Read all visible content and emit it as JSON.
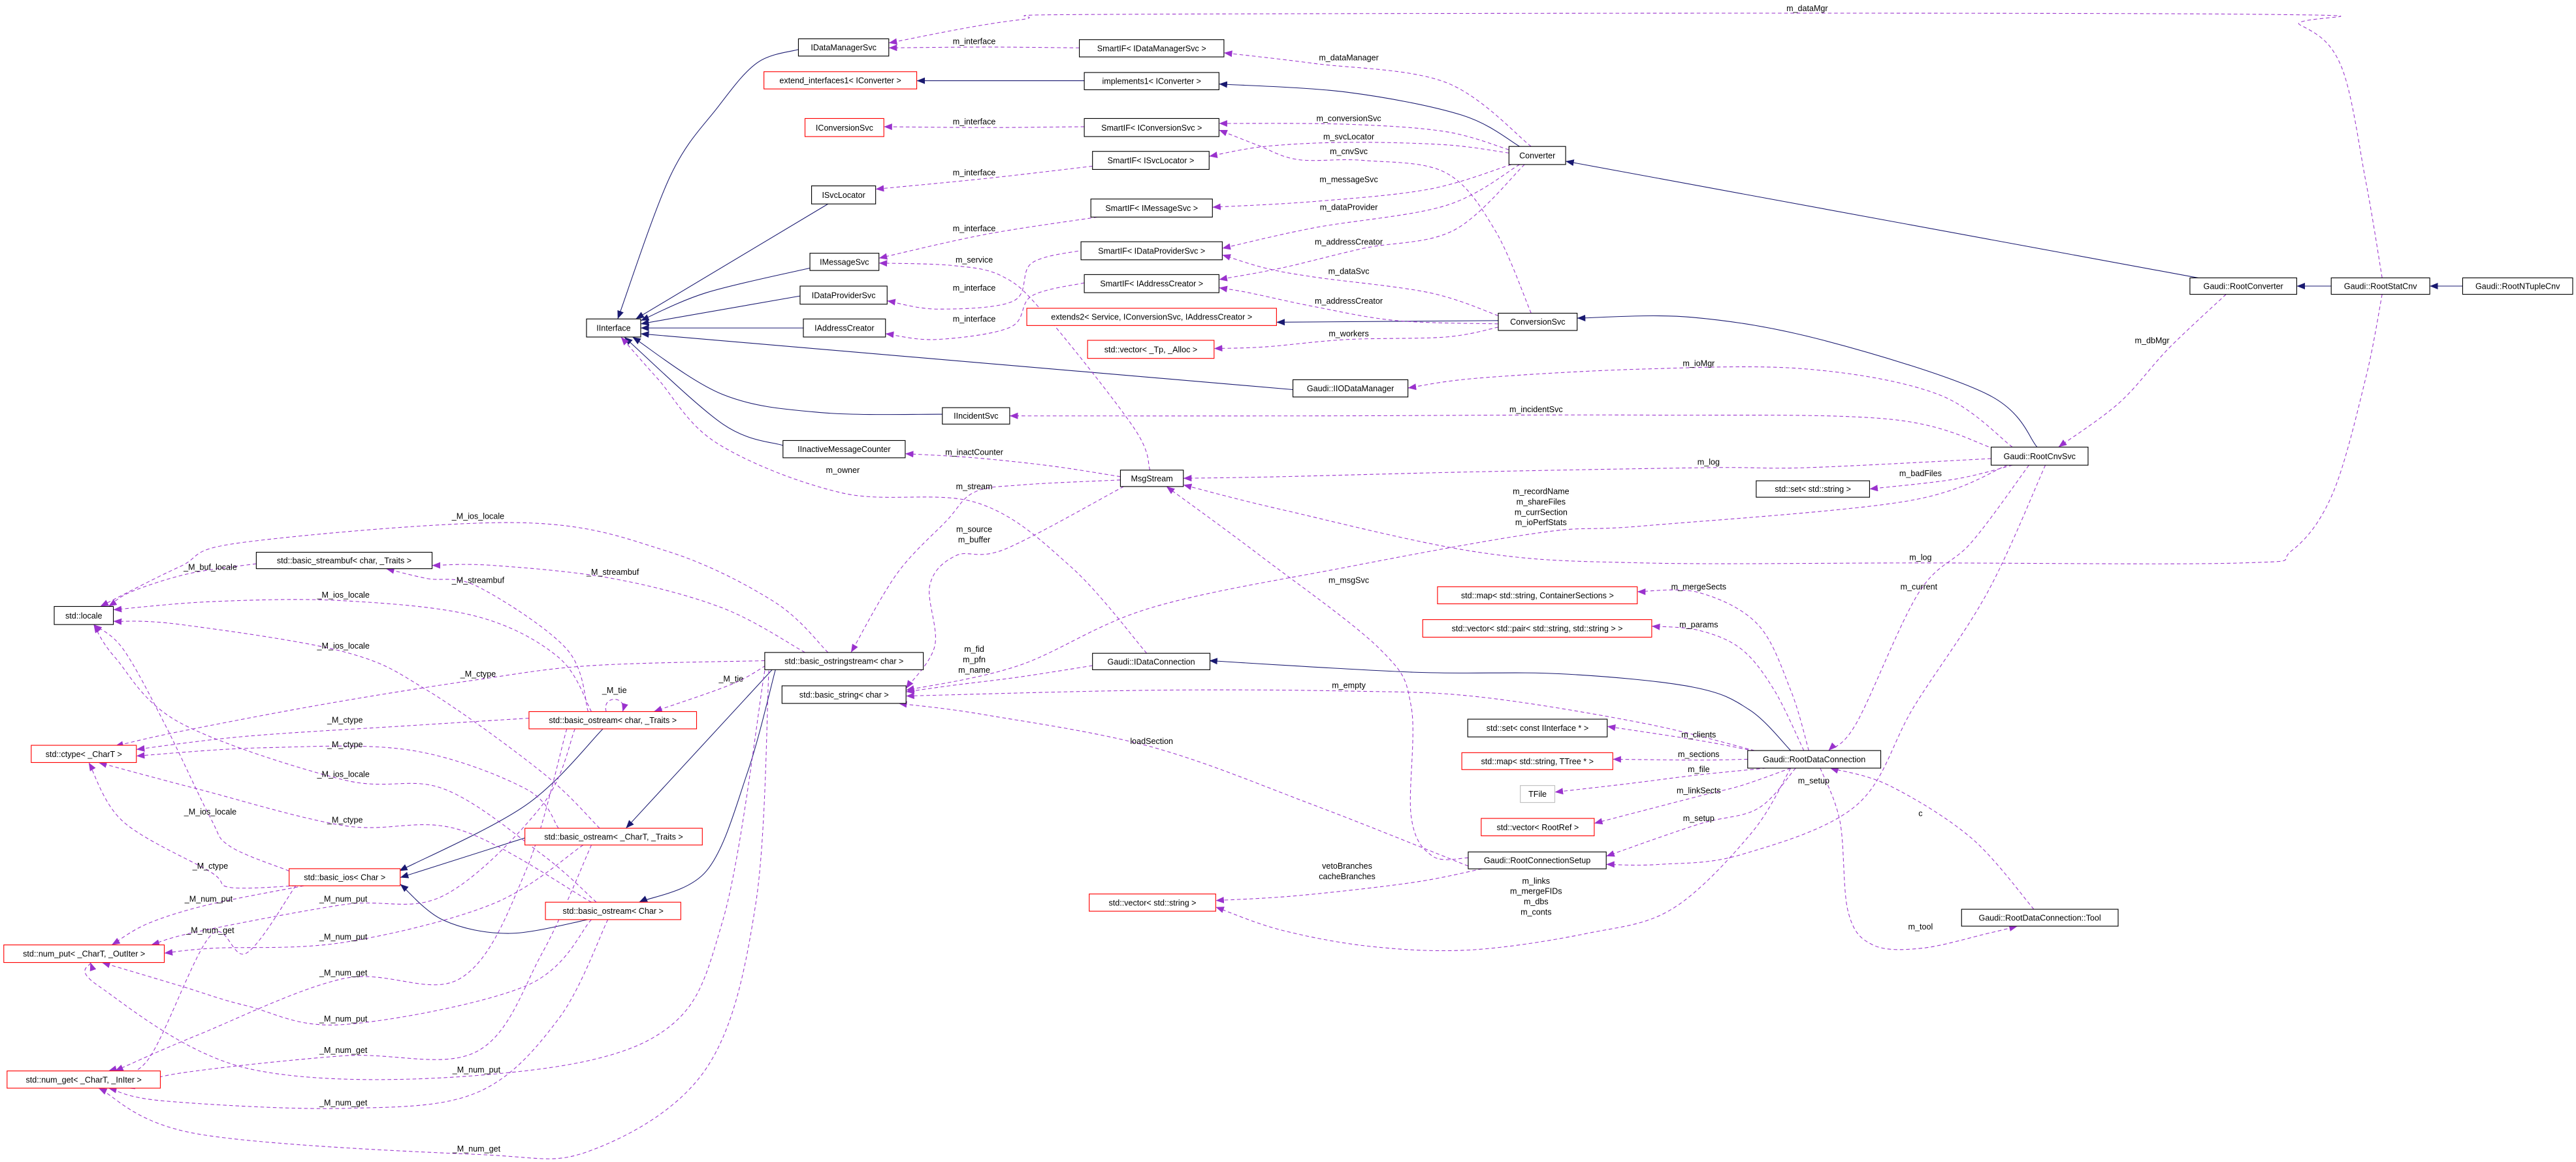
{
  "colors": {
    "inheritance_edge": "#191970",
    "usage_edge": "#9a32cd",
    "documented_border": "#000000",
    "undocumented_border": "#ff0000",
    "external_border": "#bfbfbf",
    "focus_fill": "#bfbfbf"
  },
  "nodes": [
    {
      "label": "IInterface",
      "border": "black"
    },
    {
      "label": "IDataManagerSvc",
      "border": "black"
    },
    {
      "label": "SmartIF< IDataManagerSvc >",
      "border": "black"
    },
    {
      "label": "extend_interfaces1< IConverter >",
      "border": "red"
    },
    {
      "label": "implements1< IConverter >",
      "border": "black"
    },
    {
      "label": "IConversionSvc",
      "border": "red"
    },
    {
      "label": "SmartIF< IConversionSvc >",
      "border": "black"
    },
    {
      "label": "SmartIF< ISvcLocator >",
      "border": "black"
    },
    {
      "label": "ISvcLocator",
      "border": "black"
    },
    {
      "label": "SmartIF< IMessageSvc >",
      "border": "black"
    },
    {
      "label": "IMessageSvc",
      "border": "black"
    },
    {
      "label": "SmartIF< IDataProviderSvc >",
      "border": "black"
    },
    {
      "label": "IDataProviderSvc",
      "border": "black"
    },
    {
      "label": "SmartIF< IAddressCreator >",
      "border": "black"
    },
    {
      "label": "IAddressCreator",
      "border": "black"
    },
    {
      "label": "extends2< Service, IConversionSvc, IAddressCreator >",
      "border": "red"
    },
    {
      "label": "std::vector< _Tp, _Alloc >",
      "border": "red"
    },
    {
      "label": "Converter",
      "border": "black"
    },
    {
      "label": "ConversionSvc",
      "border": "black"
    },
    {
      "label": "Gaudi::IIODataManager",
      "border": "black"
    },
    {
      "label": "IIncidentSvc",
      "border": "black"
    },
    {
      "label": "IInactiveMessageCounter",
      "border": "black"
    },
    {
      "label": "MsgStream",
      "border": "black"
    },
    {
      "label": "Gaudi::RootConverter",
      "border": "black"
    },
    {
      "label": "Gaudi::RootStatCnv",
      "border": "black"
    },
    {
      "label": "Gaudi::RootNTupleCnv",
      "border": "black",
      "focus": true
    },
    {
      "label": "Gaudi::RootCnvSvc",
      "border": "black"
    },
    {
      "label": "std::set< std::string >",
      "border": "black"
    },
    {
      "label": "std::basic_streambuf< char, _Traits >",
      "border": "black"
    },
    {
      "label": "std::locale",
      "border": "black"
    },
    {
      "label": "std::basic_ostringstream< char >",
      "border": "black"
    },
    {
      "label": "std::basic_string< char >",
      "border": "black"
    },
    {
      "label": "Gaudi::IDataConnection",
      "border": "black"
    },
    {
      "label": "std::ctype< _CharT >",
      "border": "red"
    },
    {
      "label": "std::basic_ostream< char, _Traits >",
      "border": "red"
    },
    {
      "label": "std::basic_ostream< _CharT, _Traits >",
      "border": "red"
    },
    {
      "label": "std::basic_ios< Char >",
      "border": "red"
    },
    {
      "label": "std::basic_ostream< Char >",
      "border": "red"
    },
    {
      "label": "std::num_put< _CharT, _OutIter >",
      "border": "red"
    },
    {
      "label": "std::num_get< _CharT, _InIter >",
      "border": "red"
    },
    {
      "label": "std::map< std::string, ContainerSections >",
      "border": "red"
    },
    {
      "label": "std::vector< std::pair< std::string, std::string > >",
      "border": "red"
    },
    {
      "label": "std::set< const IInterface * >",
      "border": "black"
    },
    {
      "label": "std::map< std::string, TTree * >",
      "border": "red"
    },
    {
      "label": "TFile",
      "border": "gray"
    },
    {
      "label": "std::vector< RootRef >",
      "border": "red"
    },
    {
      "label": "Gaudi::RootConnectionSetup",
      "border": "black"
    },
    {
      "label": "std::vector< std::string >",
      "border": "red"
    },
    {
      "label": "Gaudi::RootDataConnection",
      "border": "black"
    },
    {
      "label": "Gaudi::RootDataConnection::Tool",
      "border": "black"
    }
  ],
  "edges": [
    {
      "from": 1,
      "to": 0,
      "type": "inheritance"
    },
    {
      "from": 8,
      "to": 0,
      "type": "inheritance"
    },
    {
      "from": 10,
      "to": 0,
      "type": "inheritance"
    },
    {
      "from": 12,
      "to": 0,
      "type": "inheritance"
    },
    {
      "from": 14,
      "to": 0,
      "type": "inheritance"
    },
    {
      "from": 19,
      "to": 0,
      "type": "inheritance"
    },
    {
      "from": 20,
      "to": 0,
      "type": "inheritance"
    },
    {
      "from": 21,
      "to": 0,
      "type": "inheritance"
    },
    {
      "from": 4,
      "to": 3,
      "type": "inheritance"
    },
    {
      "from": 17,
      "to": 4,
      "type": "inheritance"
    },
    {
      "from": 23,
      "to": 17,
      "type": "inheritance"
    },
    {
      "from": 24,
      "to": 23,
      "type": "inheritance"
    },
    {
      "from": 25,
      "to": 24,
      "type": "inheritance"
    },
    {
      "from": 18,
      "to": 15,
      "type": "inheritance"
    },
    {
      "from": 26,
      "to": 18,
      "type": "inheritance"
    },
    {
      "from": 48,
      "to": 32,
      "type": "inheritance"
    },
    {
      "from": 30,
      "to": 35,
      "type": "inheritance"
    },
    {
      "from": 30,
      "to": 37,
      "type": "inheritance"
    },
    {
      "from": 34,
      "to": 36,
      "type": "inheritance"
    },
    {
      "from": 35,
      "to": 36,
      "type": "inheritance"
    },
    {
      "from": 37,
      "to": 36,
      "type": "inheritance"
    },
    {
      "from": 2,
      "to": 1,
      "type": "usage",
      "label": [
        "m_interface"
      ]
    },
    {
      "from": 24,
      "to": 1,
      "type": "usage",
      "label": [
        "m_dataMgr"
      ]
    },
    {
      "from": 17,
      "to": 2,
      "type": "usage",
      "label": [
        "m_dataManager"
      ]
    },
    {
      "from": 6,
      "to": 5,
      "type": "usage",
      "label": [
        "m_interface"
      ]
    },
    {
      "from": 17,
      "to": 6,
      "type": "usage",
      "label": [
        "m_conversionSvc"
      ]
    },
    {
      "from": 18,
      "to": 6,
      "type": "usage",
      "label": [
        "m_cnvSvc"
      ]
    },
    {
      "from": 17,
      "to": 7,
      "type": "usage",
      "label": [
        "m_svcLocator"
      ]
    },
    {
      "from": 7,
      "to": 8,
      "type": "usage",
      "label": [
        "m_interface"
      ]
    },
    {
      "from": 17,
      "to": 9,
      "type": "usage",
      "label": [
        "m_messageSvc"
      ]
    },
    {
      "from": 9,
      "to": 10,
      "type": "usage",
      "label": [
        "m_interface"
      ]
    },
    {
      "from": 22,
      "to": 10,
      "type": "usage",
      "label": [
        "m_service"
      ]
    },
    {
      "from": 17,
      "to": 11,
      "type": "usage",
      "label": [
        "m_dataProvider"
      ]
    },
    {
      "from": 18,
      "to": 11,
      "type": "usage",
      "label": [
        "m_dataSvc"
      ]
    },
    {
      "from": 11,
      "to": 12,
      "type": "usage",
      "label": [
        "m_interface"
      ]
    },
    {
      "from": 17,
      "to": 13,
      "type": "usage",
      "label": [
        "m_addressCreator"
      ]
    },
    {
      "from": 18,
      "to": 13,
      "type": "usage",
      "label": [
        "m_addressCreator"
      ]
    },
    {
      "from": 13,
      "to": 14,
      "type": "usage",
      "label": [
        "m_interface"
      ]
    },
    {
      "from": 18,
      "to": 16,
      "type": "usage",
      "label": [
        "m_workers"
      ]
    },
    {
      "from": 26,
      "to": 19,
      "type": "usage",
      "label": [
        "m_ioMgr"
      ]
    },
    {
      "from": 26,
      "to": 20,
      "type": "usage",
      "label": [
        "m_incidentSvc"
      ]
    },
    {
      "from": 26,
      "to": 22,
      "type": "usage",
      "label": [
        "m_log"
      ]
    },
    {
      "from": 23,
      "to": 26,
      "type": "usage",
      "label": [
        "m_dbMgr"
      ]
    },
    {
      "from": 26,
      "to": 27,
      "type": "usage",
      "label": [
        "m_badFiles"
      ]
    },
    {
      "from": 26,
      "to": 31,
      "type": "usage",
      "label": [
        "m_recordName",
        "m_shareFiles",
        "m_currSection",
        "m_ioPerfStats"
      ]
    },
    {
      "from": 24,
      "to": 22,
      "type": "usage",
      "label": [
        "m_log"
      ]
    },
    {
      "from": 26,
      "to": 48,
      "type": "usage",
      "label": [
        "m_current"
      ]
    },
    {
      "from": 22,
      "to": 21,
      "type": "usage",
      "label": [
        "m_inactCounter"
      ]
    },
    {
      "from": 32,
      "to": 0,
      "type": "usage",
      "label": [
        "m_owner"
      ]
    },
    {
      "from": 22,
      "to": 30,
      "type": "usage",
      "label": [
        "m_stream"
      ]
    },
    {
      "from": 22,
      "to": 31,
      "type": "usage",
      "label": [
        "m_source",
        "m_buffer"
      ]
    },
    {
      "from": 32,
      "to": 31,
      "type": "usage",
      "label": [
        "m_fid",
        "m_pfn",
        "m_name"
      ]
    },
    {
      "from": 46,
      "to": 22,
      "type": "usage",
      "label": [
        "m_msgSvc"
      ]
    },
    {
      "from": 48,
      "to": 31,
      "type": "usage",
      "label": [
        "m_empty"
      ]
    },
    {
      "from": 46,
      "to": 31,
      "type": "usage",
      "label": [
        "loadSection"
      ]
    },
    {
      "from": 48,
      "to": 40,
      "type": "usage",
      "label": [
        "m_mergeSects"
      ]
    },
    {
      "from": 48,
      "to": 41,
      "type": "usage",
      "label": [
        "m_params"
      ]
    },
    {
      "from": 48,
      "to": 42,
      "type": "usage",
      "label": [
        "m_clients"
      ]
    },
    {
      "from": 48,
      "to": 43,
      "type": "usage",
      "label": [
        "m_sections"
      ]
    },
    {
      "from": 48,
      "to": 44,
      "type": "usage",
      "label": [
        "m_file"
      ]
    },
    {
      "from": 48,
      "to": 45,
      "type": "usage",
      "label": [
        "m_linkSects"
      ]
    },
    {
      "from": 48,
      "to": 46,
      "type": "usage",
      "label": [
        "m_setup"
      ]
    },
    {
      "from": 26,
      "to": 46,
      "type": "usage",
      "label": [
        "m_setup"
      ]
    },
    {
      "from": 46,
      "to": 47,
      "type": "usage",
      "label": [
        "vetoBranches",
        "cacheBranches"
      ]
    },
    {
      "from": 48,
      "to": 47,
      "type": "usage",
      "label": [
        "m_links",
        "m_mergeFIDs",
        "m_dbs",
        "m_conts"
      ]
    },
    {
      "from": 49,
      "to": 48,
      "type": "usage",
      "label": [
        "c"
      ]
    },
    {
      "from": 48,
      "to": 49,
      "type": "usage",
      "label": [
        "m_tool"
      ]
    },
    {
      "from": 30,
      "to": 29,
      "type": "usage",
      "label": [
        "_M_ios_locale"
      ]
    },
    {
      "from": 28,
      "to": 29,
      "type": "usage",
      "label": [
        "_M_buf_locale"
      ]
    },
    {
      "from": 30,
      "to": 28,
      "type": "usage",
      "label": [
        "_M_streambuf"
      ]
    },
    {
      "from": 34,
      "to": 28,
      "type": "usage",
      "label": [
        "_M_streambuf"
      ]
    },
    {
      "from": 34,
      "to": 29,
      "type": "usage",
      "label": [
        "_M_ios_locale"
      ]
    },
    {
      "from": 35,
      "to": 29,
      "type": "usage",
      "label": [
        "_M_ios_locale"
      ]
    },
    {
      "from": 30,
      "to": 33,
      "type": "usage",
      "label": [
        "_M_ctype"
      ]
    },
    {
      "from": 34,
      "to": 34,
      "type": "usage",
      "label": [
        "_M_tie"
      ]
    },
    {
      "from": 30,
      "to": 34,
      "type": "usage",
      "label": [
        "_M_tie"
      ]
    },
    {
      "from": 34,
      "to": 33,
      "type": "usage",
      "label": [
        "_M_ctype"
      ]
    },
    {
      "from": 35,
      "to": 33,
      "type": "usage",
      "label": [
        "_M_ctype"
      ]
    },
    {
      "from": 37,
      "to": 29,
      "type": "usage",
      "label": [
        "_M_ios_locale"
      ]
    },
    {
      "from": 36,
      "to": 29,
      "type": "usage",
      "label": [
        "_M_ios_locale"
      ]
    },
    {
      "from": 37,
      "to": 33,
      "type": "usage",
      "label": [
        "_M_ctype"
      ]
    },
    {
      "from": 36,
      "to": 33,
      "type": "usage",
      "label": [
        "_M_ctype"
      ]
    },
    {
      "from": 36,
      "to": 38,
      "type": "usage",
      "label": [
        "_M_num_put"
      ]
    },
    {
      "from": 34,
      "to": 38,
      "type": "usage",
      "label": [
        "_M_num_put"
      ]
    },
    {
      "from": 36,
      "to": 39,
      "type": "usage",
      "label": [
        "_M_num_get"
      ]
    },
    {
      "from": 35,
      "to": 38,
      "type": "usage",
      "label": [
        "_M_num_put"
      ]
    },
    {
      "from": 34,
      "to": 39,
      "type": "usage",
      "label": [
        "_M_num_get"
      ]
    },
    {
      "from": 37,
      "to": 38,
      "type": "usage",
      "label": [
        "_M_num_put"
      ]
    },
    {
      "from": 35,
      "to": 39,
      "type": "usage",
      "label": [
        "_M_num_get"
      ]
    },
    {
      "from": 30,
      "to": 38,
      "type": "usage",
      "label": [
        "_M_num_put"
      ]
    },
    {
      "from": 37,
      "to": 39,
      "type": "usage",
      "label": [
        "_M_num_get"
      ]
    },
    {
      "from": 30,
      "to": 39,
      "type": "usage",
      "label": [
        "_M_num_get"
      ]
    }
  ]
}
